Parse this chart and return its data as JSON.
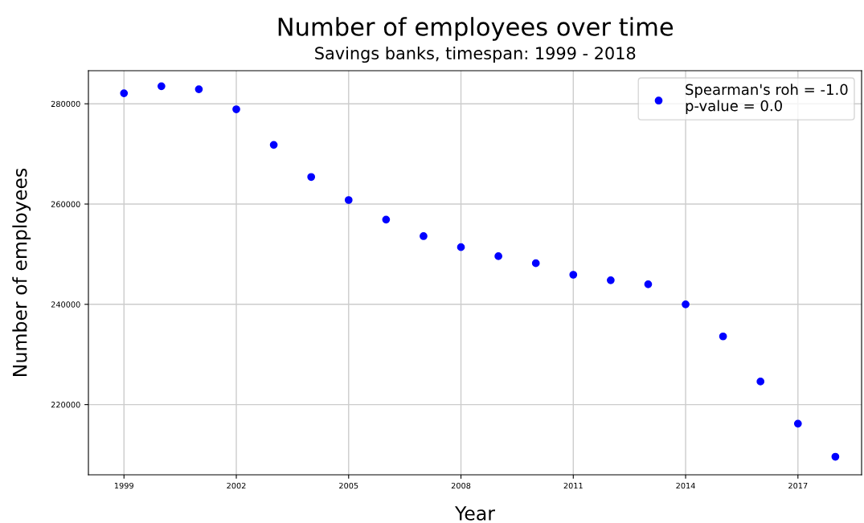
{
  "chart_data": {
    "type": "scatter",
    "title": "Number of employees over time",
    "subtitle": "Savings banks, timespan: 1999 - 2018",
    "xlabel": "Year",
    "ylabel": "Number of employees",
    "x": [
      1999,
      2000,
      2001,
      2002,
      2003,
      2004,
      2005,
      2006,
      2007,
      2008,
      2009,
      2010,
      2011,
      2012,
      2013,
      2014,
      2015,
      2016,
      2017,
      2018
    ],
    "series": [
      {
        "name": "Spearman's roh = -1.0\np-value = 0.0",
        "color": "#0000ff",
        "values": [
          282100,
          283500,
          282900,
          278900,
          271800,
          265400,
          260800,
          256900,
          253600,
          251400,
          249600,
          248200,
          245900,
          244800,
          244000,
          240000,
          233600,
          224600,
          216200,
          209600
        ]
      }
    ],
    "xlim": [
      1998.05,
      2018.7
    ],
    "xticks": [
      1999,
      2002,
      2005,
      2008,
      2011,
      2014,
      2017
    ],
    "ylim": [
      206000,
      286600
    ],
    "yticks": [
      220000,
      240000,
      260000,
      280000
    ],
    "grid": true,
    "legend": "top right",
    "marker": "circle"
  }
}
